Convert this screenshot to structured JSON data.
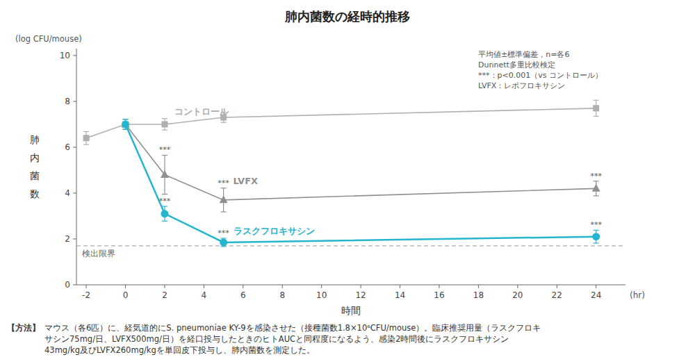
{
  "chart_data": {
    "type": "line",
    "title": "肺内菌数の経時的推移",
    "x_label": "時間",
    "x_unit": "(hr)",
    "y_label": "肺\n内\n菌\n数",
    "y_unit": "(log CFU/mouse)",
    "xlim": [
      -2.5,
      25.5
    ],
    "ylim": [
      0,
      10.3
    ],
    "xticks": [
      -2,
      0,
      2,
      4,
      6,
      8,
      10,
      12,
      14,
      16,
      18,
      20,
      22,
      24
    ],
    "yticks": [
      0,
      2,
      4,
      6,
      8,
      10
    ],
    "grid": false,
    "detection_limit": 1.7,
    "detection_label": "検出限界",
    "series": [
      {
        "name": "コントロール",
        "color": "#b0b0b0",
        "marker": "square",
        "x": [
          -2,
          0,
          2,
          5,
          24
        ],
        "values": [
          6.4,
          7.0,
          7.0,
          7.3,
          7.7
        ],
        "errors": [
          0.28,
          0.22,
          0.25,
          0.22,
          0.35
        ]
      },
      {
        "name": "LVFX",
        "color": "#909090",
        "marker": "triangle",
        "x": [
          0,
          2,
          5,
          24
        ],
        "values": [
          7.0,
          4.8,
          3.7,
          4.2
        ],
        "errors": [
          0.22,
          0.85,
          0.52,
          0.32
        ],
        "significance": [
          null,
          "***",
          "***",
          "***"
        ]
      },
      {
        "name": "ラスクフロキサシン",
        "color": "#26b5ce",
        "marker": "circle",
        "x": [
          0,
          2,
          5,
          24
        ],
        "values": [
          7.0,
          3.1,
          1.85,
          2.1
        ],
        "errors": [
          0.22,
          0.32,
          0.18,
          0.28
        ],
        "significance": [
          null,
          "***",
          "***",
          "***"
        ]
      }
    ],
    "notes": [
      "平均値±標準偏差，n=各6",
      "Dunnett多重比較検定",
      "***：p<0.001（vs コントロール）",
      "LVFX：レボフロキサシン"
    ],
    "footnote_label": "【方法】",
    "footnote": "マウス（各6匹）に、経気道的にS. pneumoniae KY-9を感染させた（接種菌数1.8×10⁶CFU/mouse）。臨床推奨用量（ラスクフロキ\nサシン75mg/日、LVFX500mg/日）を経口投与したときのヒトAUCと同程度になるよう、感染2時間後にラスクフロキサシン\n43mg/kg及びLVFX260mg/kgを単回皮下投与し、肺内菌数を測定した。"
  }
}
